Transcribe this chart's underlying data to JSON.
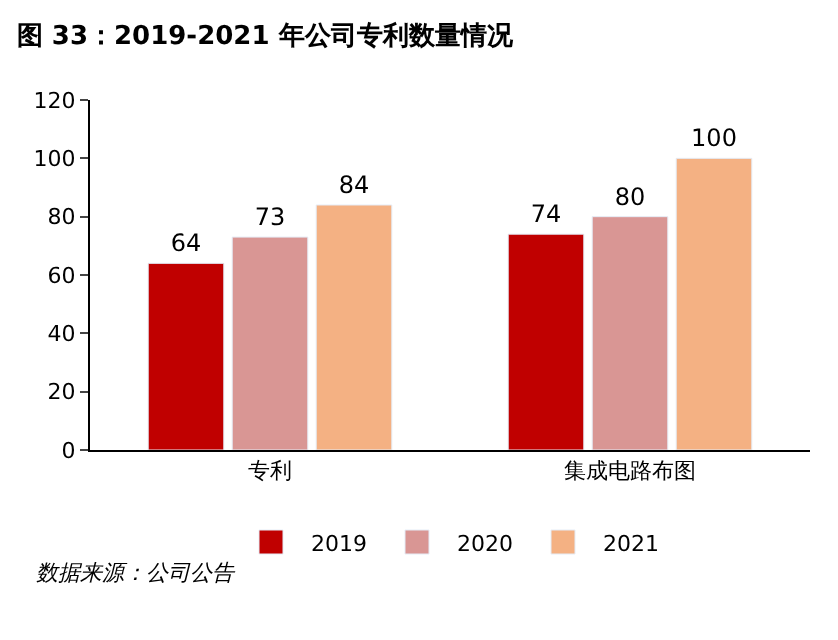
{
  "chart_data": {
    "type": "bar",
    "title": "图 33：2019-2021 年公司专利数量情况",
    "categories": [
      "专利",
      "集成电路布图"
    ],
    "series": [
      {
        "name": "2019",
        "color": "#c00000",
        "values": [
          64,
          74
        ]
      },
      {
        "name": "2020",
        "color": "#d99694",
        "values": [
          73,
          80
        ]
      },
      {
        "name": "2021",
        "color": "#f4b183",
        "values": [
          84,
          100
        ]
      }
    ],
    "ylim": [
      0,
      120
    ],
    "yticks": [
      0,
      20,
      40,
      60,
      80,
      100,
      120
    ],
    "grid": false,
    "legend": "bottom",
    "data_labels": true,
    "annotations": [
      "数据来源：公司公告"
    ]
  }
}
